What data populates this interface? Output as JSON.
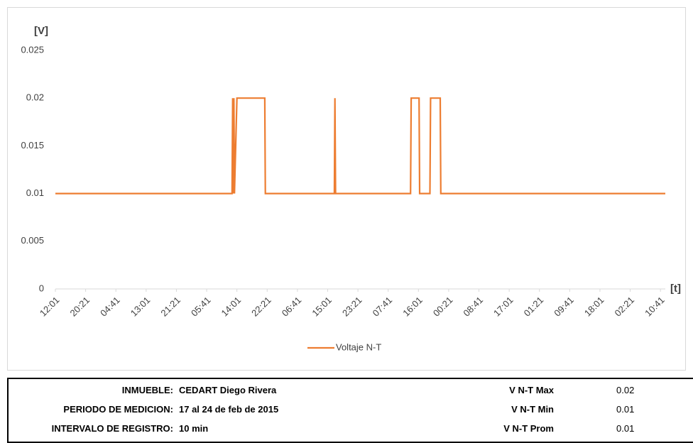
{
  "chart_data": {
    "type": "line",
    "y_axis_label": "[V]",
    "x_axis_label": "[t]",
    "x": [
      0,
      292,
      293,
      294,
      295,
      296,
      300,
      346,
      347,
      461,
      462,
      463,
      587,
      588,
      601,
      602,
      619,
      620,
      636,
      637,
      1008
    ],
    "series": [
      {
        "name": "Voltaje N-T",
        "color": "#ed7d31",
        "values": [
          0.01,
          0.01,
          0.02,
          0.01,
          0.02,
          0.01,
          0.02,
          0.02,
          0.01,
          0.01,
          0.02,
          0.01,
          0.01,
          0.02,
          0.02,
          0.01,
          0.01,
          0.02,
          0.02,
          0.01,
          0.01
        ]
      }
    ],
    "xlim": [
      0,
      1008
    ],
    "xticks": [
      {
        "value": 0,
        "label": "12:01"
      },
      {
        "value": 50,
        "label": "20:21"
      },
      {
        "value": 100,
        "label": "04:41"
      },
      {
        "value": 150,
        "label": "13:01"
      },
      {
        "value": 200,
        "label": "21:21"
      },
      {
        "value": 250,
        "label": "05:41"
      },
      {
        "value": 300,
        "label": "14:01"
      },
      {
        "value": 350,
        "label": "22:21"
      },
      {
        "value": 400,
        "label": "06:41"
      },
      {
        "value": 450,
        "label": "15:01"
      },
      {
        "value": 500,
        "label": "23:21"
      },
      {
        "value": 550,
        "label": "07:41"
      },
      {
        "value": 600,
        "label": "16:01"
      },
      {
        "value": 650,
        "label": "00:21"
      },
      {
        "value": 700,
        "label": "08:41"
      },
      {
        "value": 750,
        "label": "17:01"
      },
      {
        "value": 800,
        "label": "01:21"
      },
      {
        "value": 850,
        "label": "09:41"
      },
      {
        "value": 900,
        "label": "18:01"
      },
      {
        "value": 950,
        "label": "02:21"
      },
      {
        "value": 1000,
        "label": "10:41"
      }
    ],
    "ylim": [
      0,
      0.025
    ],
    "yticks": [
      0,
      0.005,
      0.01,
      0.015,
      0.02,
      0.025
    ],
    "legend": "bottom"
  },
  "table": {
    "rows": [
      [
        "INMUEBLE:",
        "CEDART Diego Rivera",
        "V N-T Max",
        0.02
      ],
      [
        "PERIODO DE MEDICION:",
        "17 al 24 de feb de 2015",
        "V N-T Min",
        0.01
      ],
      [
        "INTERVALO DE REGISTRO:",
        "10 min",
        "V N-T Prom",
        0.01
      ]
    ]
  }
}
